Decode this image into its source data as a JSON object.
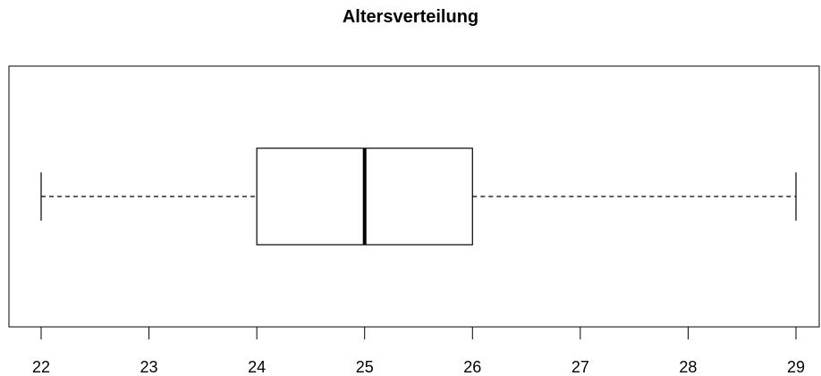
{
  "chart_data": {
    "type": "boxplot",
    "orientation": "horizontal",
    "title": "Altersverteilung",
    "xlabel": "",
    "ylabel": "",
    "xlim": [
      22,
      29
    ],
    "x_ticks": [
      "22",
      "23",
      "24",
      "25",
      "26",
      "27",
      "28",
      "29"
    ],
    "box": {
      "min": 22,
      "q1": 24,
      "median": 25,
      "q3": 26,
      "max": 29
    },
    "grid": false,
    "legend": "none"
  }
}
